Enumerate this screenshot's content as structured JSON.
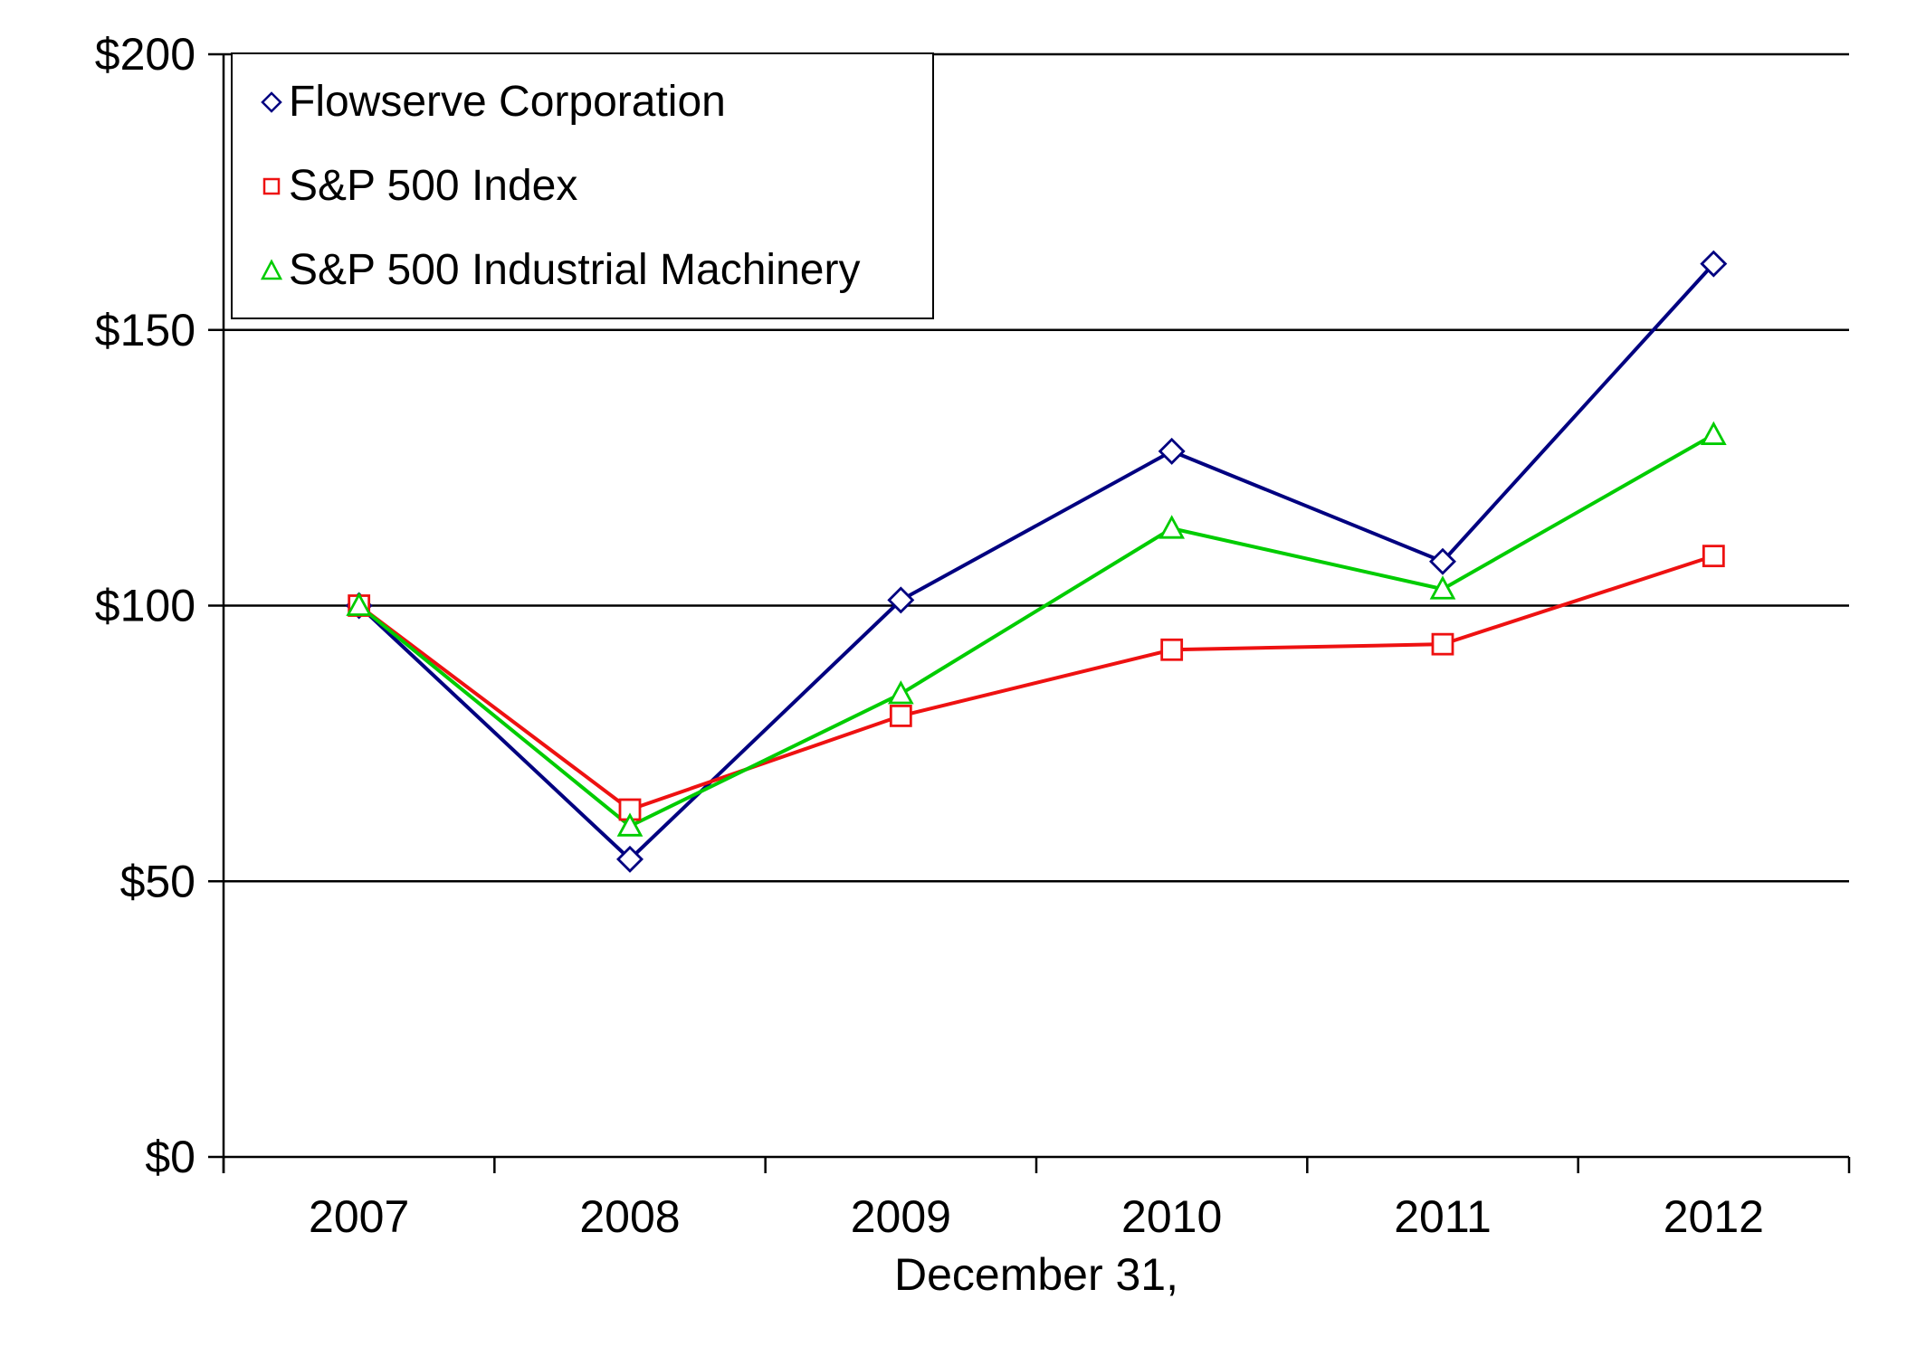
{
  "chart_data": {
    "type": "line",
    "title": "",
    "xlabel": "December 31,",
    "ylabel": "",
    "categories": [
      "2007",
      "2008",
      "2009",
      "2010",
      "2011",
      "2012"
    ],
    "series": [
      {
        "name": "Flowserve Corporation",
        "marker": "diamond",
        "color": "#000080",
        "values": [
          100,
          54,
          101,
          128,
          108,
          162
        ]
      },
      {
        "name": "S&P 500 Index",
        "marker": "square",
        "color": "#EE1111",
        "values": [
          100,
          63,
          80,
          92,
          93,
          109
        ]
      },
      {
        "name": "S&P 500 Industrial Machinery",
        "marker": "triangle",
        "color": "#00CC00",
        "values": [
          100,
          60,
          84,
          114,
          103,
          131
        ]
      }
    ],
    "ylim": [
      0,
      200
    ],
    "yticks": {
      "values": [
        0,
        50,
        100,
        150,
        200
      ],
      "labels": [
        "$0",
        "$50",
        "$100",
        "$150",
        "$200"
      ]
    },
    "grid": "horizontal",
    "gridline_color": "#000000",
    "legend_position": "top-left",
    "background_color": "#FFFFFF"
  }
}
